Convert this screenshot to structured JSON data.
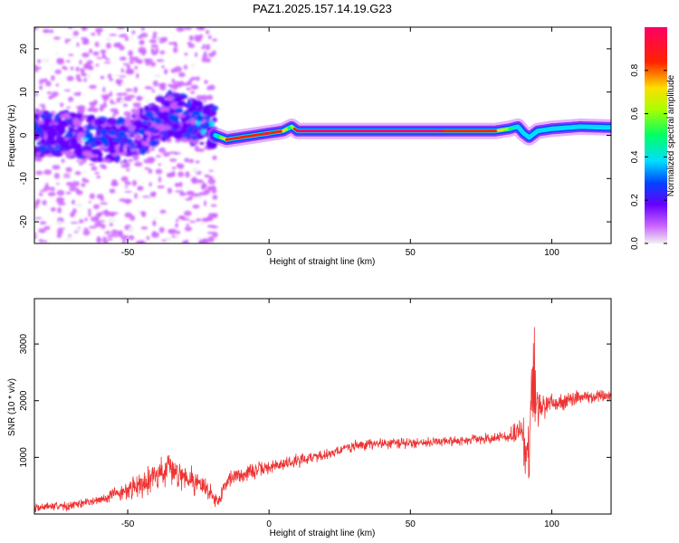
{
  "title": "PAZ1.2025.157.14.19.G23",
  "chart_data": [
    {
      "type": "heatmap",
      "xlabel": "Height of straight line (km)",
      "ylabel": "Frequency (Hz)",
      "xlim": [
        -83,
        121
      ],
      "ylim": [
        -25,
        25
      ],
      "x_ticks": [
        -50,
        0,
        50,
        100
      ],
      "y_ticks": [
        -20,
        -10,
        0,
        10,
        20
      ],
      "colorbar": {
        "label": "Normalized spectral amplitude",
        "range": [
          0,
          1
        ],
        "ticks": [
          0.0,
          0.2,
          0.4,
          0.6,
          0.8
        ],
        "colormap": [
          "#f0f0f0",
          "#cc66ff",
          "#6600ff",
          "#0044ff",
          "#00ddff",
          "#00ff66",
          "#aaff00",
          "#ffdd00",
          "#ff2200",
          "#ff0066"
        ]
      },
      "noise_region": {
        "x": [
          -83,
          -19
        ],
        "freq_range": [
          -25,
          25
        ]
      },
      "ridge": {
        "x": [
          -83,
          -70,
          -60,
          -50,
          -40,
          -35,
          -30,
          -25,
          -20,
          -19,
          -15,
          -10,
          -5,
          0,
          5,
          8,
          10,
          20,
          40,
          60,
          80,
          85,
          88,
          90,
          92,
          95,
          100,
          110,
          121
        ],
        "freq": [
          0.5,
          0,
          -1,
          -1,
          3,
          5,
          4,
          3,
          2,
          0,
          -1,
          -0.5,
          0,
          0.5,
          1,
          2,
          1,
          1,
          1,
          1,
          1,
          1.5,
          2,
          0.5,
          -0.5,
          1,
          1.5,
          2,
          1.8
        ],
        "amplitude": [
          0.2,
          0.2,
          0.25,
          0.25,
          0.3,
          0.4,
          0.3,
          0.3,
          0.3,
          0.3,
          0.9,
          0.9,
          0.9,
          0.95,
          0.85,
          0.5,
          0.95,
          0.95,
          0.95,
          0.95,
          0.9,
          0.6,
          0.3,
          0.2,
          0.3,
          0.3,
          0.3,
          0.3,
          0.3
        ]
      }
    },
    {
      "type": "line",
      "xlabel": "Height of straight line (km)",
      "ylabel": "SNR (10 * v/v)",
      "xlim": [
        -83,
        121
      ],
      "ylim": [
        0,
        3800
      ],
      "x_ticks": [
        -50,
        0,
        50,
        100
      ],
      "y_ticks": [
        1000,
        2000,
        3000
      ],
      "color": "#ee3333",
      "series": [
        {
          "x": [
            -83,
            -70,
            -60,
            -50,
            -45,
            -40,
            -35,
            -30,
            -25,
            -20,
            -18,
            -15,
            -10,
            0,
            10,
            20,
            30,
            40,
            50,
            60,
            70,
            80,
            85,
            88,
            90,
            91,
            92,
            93,
            94,
            95,
            97,
            100,
            110,
            121
          ],
          "mean": [
            120,
            150,
            250,
            420,
            550,
            700,
            780,
            700,
            550,
            350,
            200,
            600,
            700,
            820,
            950,
            1050,
            1200,
            1250,
            1250,
            1280,
            1300,
            1350,
            1350,
            1450,
            1400,
            900,
            1000,
            2000,
            2500,
            1800,
            1900,
            1950,
            2050,
            2100
          ],
          "spread": [
            100,
            100,
            100,
            200,
            300,
            350,
            350,
            300,
            300,
            200,
            150,
            200,
            200,
            150,
            150,
            120,
            120,
            120,
            120,
            100,
            100,
            120,
            150,
            300,
            600,
            800,
            800,
            800,
            1300,
            400,
            250,
            200,
            150,
            150
          ]
        }
      ]
    }
  ]
}
